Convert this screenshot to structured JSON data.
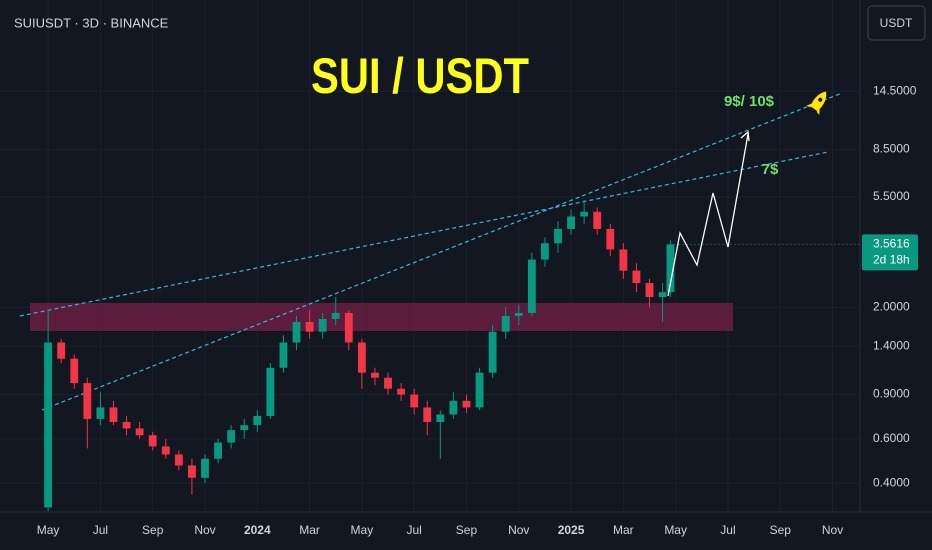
{
  "toolbar": {
    "button": "USDT"
  },
  "chart_data": {
    "type": "candlestick",
    "title": "SUI / USDT",
    "subtitle": "SUIUSDT · 3D · BINANCE",
    "annotations": [
      "9$/ 10$",
      "7$"
    ],
    "countdown": "2d 18h",
    "up_color": "#089981",
    "down_color": "#f23645",
    "log_scale": true,
    "grid": true,
    "x": [
      0,
      0.5,
      1,
      1.5,
      2,
      2.5,
      3,
      3.5,
      4,
      4.5,
      5,
      5.5,
      6,
      6.5,
      7,
      7.5,
      8,
      8.5,
      9,
      9.5,
      10,
      10.5,
      11,
      11.5,
      12,
      12.5,
      13,
      13.5,
      14,
      14.5,
      15,
      15.5,
      16,
      16.5,
      17,
      17.5,
      18,
      18.5,
      19,
      19.5,
      20,
      20.5,
      21,
      21.5,
      22,
      22.5,
      23,
      23.5,
      23.8
    ],
    "open": [
      0.32,
      1.45,
      1.25,
      1.0,
      0.72,
      0.8,
      0.7,
      0.66,
      0.62,
      0.56,
      0.52,
      0.47,
      0.42,
      0.5,
      0.58,
      0.65,
      0.68,
      0.74,
      1.15,
      1.45,
      1.75,
      1.6,
      1.8,
      1.9,
      1.45,
      1.1,
      1.05,
      0.95,
      0.9,
      0.8,
      0.7,
      0.75,
      0.85,
      0.8,
      1.1,
      1.6,
      1.85,
      1.9,
      3.1,
      3.6,
      4.1,
      4.6,
      4.8,
      4.1,
      3.4,
      2.8,
      2.5,
      2.2,
      2.3
    ],
    "high": [
      1.95,
      1.5,
      1.3,
      1.05,
      0.92,
      0.85,
      0.74,
      0.7,
      0.64,
      0.6,
      0.54,
      0.5,
      0.52,
      0.6,
      0.68,
      0.72,
      0.78,
      1.2,
      1.55,
      1.85,
      1.95,
      1.9,
      2.2,
      1.95,
      1.5,
      1.15,
      1.1,
      1.0,
      0.95,
      0.85,
      0.78,
      0.92,
      0.9,
      1.15,
      1.7,
      2.0,
      2.05,
      3.3,
      3.8,
      4.4,
      4.9,
      5.35,
      5.0,
      4.3,
      3.6,
      3.0,
      2.6,
      2.5,
      3.7
    ],
    "low": [
      0.31,
      1.2,
      0.95,
      0.55,
      0.68,
      0.68,
      0.62,
      0.6,
      0.54,
      0.5,
      0.45,
      0.36,
      0.4,
      0.48,
      0.55,
      0.6,
      0.64,
      0.72,
      1.1,
      1.35,
      1.5,
      1.5,
      1.7,
      1.35,
      0.95,
      0.98,
      0.9,
      0.85,
      0.75,
      0.62,
      0.5,
      0.72,
      0.76,
      0.78,
      1.05,
      1.5,
      1.7,
      1.85,
      2.9,
      3.3,
      3.9,
      4.3,
      3.9,
      3.2,
      2.6,
      2.3,
      2.0,
      1.75,
      2.2
    ],
    "close": [
      1.45,
      1.25,
      1.0,
      0.72,
      0.8,
      0.7,
      0.66,
      0.62,
      0.56,
      0.52,
      0.47,
      0.42,
      0.5,
      0.58,
      0.65,
      0.68,
      0.74,
      1.15,
      1.45,
      1.75,
      1.6,
      1.8,
      1.9,
      1.45,
      1.1,
      1.05,
      0.95,
      0.9,
      0.8,
      0.7,
      0.75,
      0.85,
      0.8,
      1.1,
      1.6,
      1.85,
      1.9,
      3.1,
      3.6,
      4.1,
      4.6,
      4.8,
      4.1,
      3.4,
      2.8,
      2.5,
      2.2,
      2.3,
      3.5616
    ],
    "ylim": [
      0.307,
      33.4
    ],
    "yticks": [
      {
        "value": 14.5,
        "label": "14.5000"
      },
      {
        "value": 8.5,
        "label": "8.5000"
      },
      {
        "value": 5.5,
        "label": "5.5000"
      },
      {
        "value": 2,
        "label": "2.0000"
      },
      {
        "value": 1.4,
        "label": "1.4000"
      },
      {
        "value": 0.9,
        "label": "0.9000"
      },
      {
        "value": 0.6,
        "label": "0.6000"
      },
      {
        "value": 0.4,
        "label": "0.4000"
      }
    ],
    "xlim": [
      -1.84,
      31.05
    ],
    "xticks": [
      {
        "value": 0,
        "label": "May"
      },
      {
        "value": 2,
        "label": "Jul"
      },
      {
        "value": 4,
        "label": "Sep"
      },
      {
        "value": 6,
        "label": "Nov"
      },
      {
        "value": 8,
        "label": "2024"
      },
      {
        "value": 10,
        "label": "Mar"
      },
      {
        "value": 12,
        "label": "May"
      },
      {
        "value": 14,
        "label": "Jul"
      },
      {
        "value": 16,
        "label": "Sep"
      },
      {
        "value": 18,
        "label": "Nov"
      },
      {
        "value": 20,
        "label": "2025"
      },
      {
        "value": 22,
        "label": "Mar"
      },
      {
        "value": 24,
        "label": "May"
      },
      {
        "value": 26,
        "label": "Jul"
      },
      {
        "value": 28,
        "label": "Sep"
      },
      {
        "value": 30,
        "label": "Nov"
      }
    ]
  }
}
